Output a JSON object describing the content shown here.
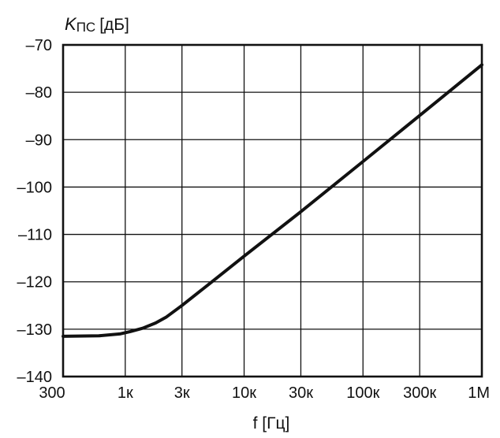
{
  "chart_data": {
    "type": "line",
    "title": "",
    "ylabel": {
      "main": "K",
      "sub": "ПС",
      "unit": "[дБ]"
    },
    "xlabel": "f [Гц]",
    "x_scale": "log",
    "xlim": [
      300,
      1000000
    ],
    "ylim": [
      -140,
      -70
    ],
    "grid": true,
    "x_ticks": [
      {
        "value": 300,
        "label": "300"
      },
      {
        "value": 1000,
        "label": "1к"
      },
      {
        "value": 3000,
        "label": "3к"
      },
      {
        "value": 10000,
        "label": "10к"
      },
      {
        "value": 30000,
        "label": "30к"
      },
      {
        "value": 100000,
        "label": "100к"
      },
      {
        "value": 300000,
        "label": "300к"
      },
      {
        "value": 1000000,
        "label": "1М"
      }
    ],
    "y_ticks": [
      {
        "value": -70,
        "label": "–70"
      },
      {
        "value": -80,
        "label": "–80"
      },
      {
        "value": -90,
        "label": "–90"
      },
      {
        "value": -100,
        "label": "–100"
      },
      {
        "value": -110,
        "label": "–110"
      },
      {
        "value": -120,
        "label": "–120"
      },
      {
        "value": -130,
        "label": "–130"
      },
      {
        "value": -140,
        "label": "–140"
      }
    ],
    "series": [
      {
        "color": "#111111",
        "points": [
          {
            "x": 300,
            "y": -131.5
          },
          {
            "x": 600,
            "y": -131.4
          },
          {
            "x": 900,
            "y": -131
          },
          {
            "x": 1100,
            "y": -130.5
          },
          {
            "x": 1400,
            "y": -129.8
          },
          {
            "x": 1800,
            "y": -128.7
          },
          {
            "x": 2200,
            "y": -127.5
          },
          {
            "x": 3000,
            "y": -125
          },
          {
            "x": 5000,
            "y": -120.6
          },
          {
            "x": 10000,
            "y": -114.6
          },
          {
            "x": 30000,
            "y": -105.2
          },
          {
            "x": 100000,
            "y": -94.6
          },
          {
            "x": 300000,
            "y": -84.9
          },
          {
            "x": 1000000,
            "y": -74.2
          }
        ]
      }
    ]
  }
}
